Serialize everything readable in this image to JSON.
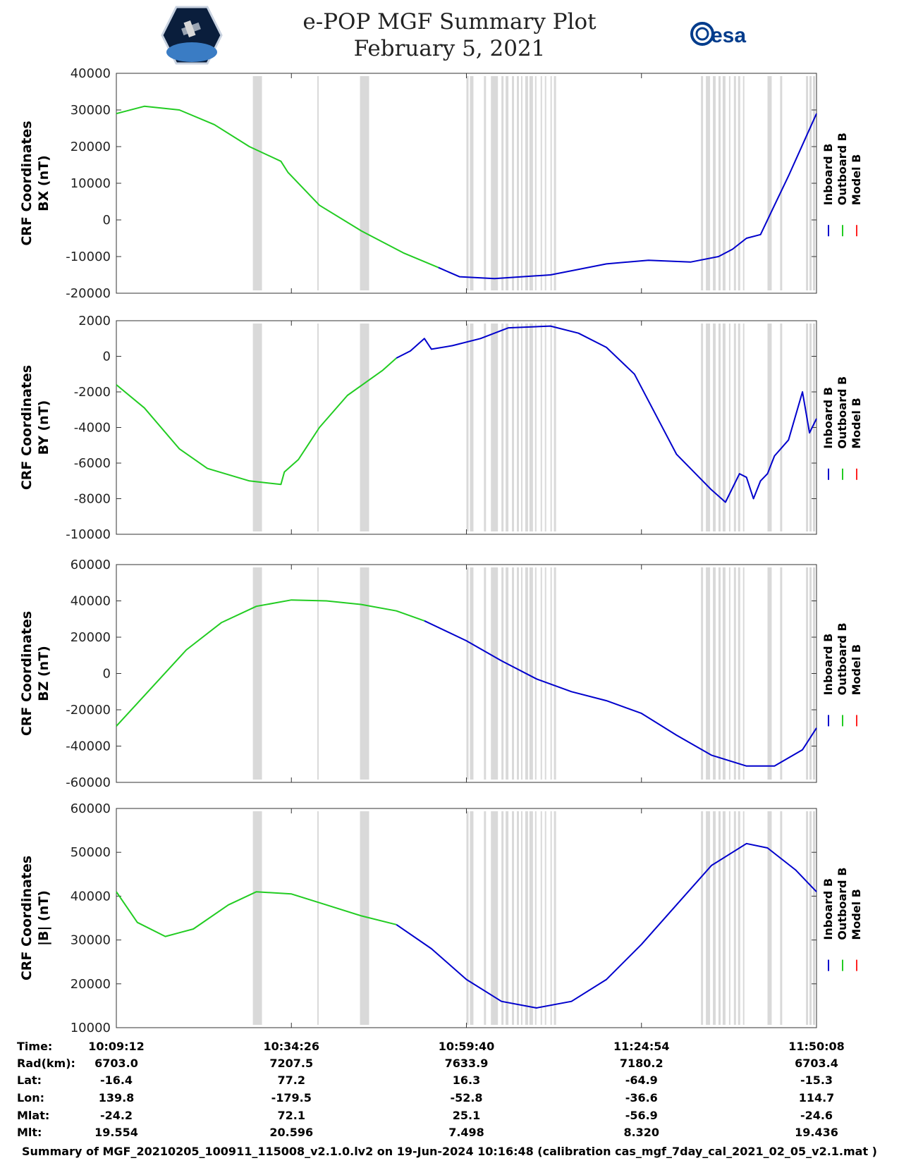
{
  "header": {
    "title_line1": "e-POP MGF Summary Plot",
    "title_line2": "February 5, 2021",
    "logo_left": "satellite-mission-logo",
    "logo_right_text": "esa"
  },
  "colors": {
    "inboard": "#0000cc",
    "outboard": "#22cc22",
    "model": "#ff2222",
    "gap": "#d9d9d9"
  },
  "chart_data": [
    {
      "type": "line",
      "id": "bx",
      "ylabel_line1": "CRF Coordinates",
      "ylabel_line2": "BX (nT)",
      "ylim": [
        -20000,
        40000
      ],
      "yticks": [
        "-20000",
        "-10000",
        "0",
        "10000",
        "20000",
        "30000",
        "40000"
      ],
      "legend": [
        "Inboard B",
        "Outboard B",
        "Model B"
      ],
      "series": [
        {
          "name": "Outboard B",
          "x": [
            0,
            0.04,
            0.09,
            0.14,
            0.19,
            0.235,
            0.245,
            0.29,
            0.35,
            0.41,
            0.46
          ],
          "y": [
            29000,
            31000,
            30000,
            26000,
            20000,
            16000,
            13000,
            4000,
            -3000,
            -9000,
            -13000
          ]
        },
        {
          "name": "Inboard B",
          "x": [
            0.46,
            0.49,
            0.54,
            0.62,
            0.7,
            0.76,
            0.82,
            0.86,
            0.88,
            0.9,
            0.92,
            0.94,
            0.96,
            1.0
          ],
          "y": [
            -13000,
            -15500,
            -16000,
            -15000,
            -12000,
            -11000,
            -11500,
            -10000,
            -8000,
            -5000,
            -4000,
            4000,
            12000,
            29000
          ]
        }
      ]
    },
    {
      "type": "line",
      "id": "by",
      "ylabel_line1": "CRF Coordinates",
      "ylabel_line2": "BY (nT)",
      "ylim": [
        -10000,
        2000
      ],
      "yticks": [
        "-10000",
        "-8000",
        "-6000",
        "-4000",
        "-2000",
        "0",
        "2000"
      ],
      "legend": [
        "Inboard B",
        "Outboard B",
        "Model B"
      ],
      "series": [
        {
          "name": "Outboard B",
          "x": [
            0,
            0.04,
            0.09,
            0.13,
            0.19,
            0.235,
            0.24,
            0.26,
            0.29,
            0.33,
            0.38,
            0.4
          ],
          "y": [
            -1600,
            -2900,
            -5200,
            -6300,
            -7000,
            -7200,
            -6500,
            -5800,
            -4000,
            -2200,
            -800,
            -100
          ]
        },
        {
          "name": "Inboard B",
          "x": [
            0.4,
            0.42,
            0.44,
            0.45,
            0.48,
            0.52,
            0.56,
            0.62,
            0.66,
            0.7,
            0.74,
            0.8,
            0.85,
            0.87,
            0.89,
            0.9,
            0.91,
            0.92,
            0.93,
            0.94,
            0.96,
            0.98,
            0.99,
            1.0
          ],
          "y": [
            -100,
            300,
            1000,
            400,
            600,
            1000,
            1600,
            1700,
            1300,
            500,
            -1000,
            -5500,
            -7500,
            -8200,
            -6600,
            -6800,
            -8000,
            -7000,
            -6600,
            -5600,
            -4700,
            -2000,
            -4300,
            -3500
          ]
        }
      ]
    },
    {
      "type": "line",
      "id": "bz",
      "ylabel_line1": "CRF Coordinates",
      "ylabel_line2": "BZ (nT)",
      "ylim": [
        -60000,
        60000
      ],
      "yticks": [
        "-60000",
        "-40000",
        "-20000",
        "0",
        "20000",
        "40000",
        "60000"
      ],
      "legend": [
        "Inboard B",
        "Outboard B",
        "Model B"
      ],
      "series": [
        {
          "name": "Outboard B",
          "x": [
            0,
            0.05,
            0.1,
            0.15,
            0.2,
            0.25,
            0.3,
            0.35,
            0.4,
            0.44
          ],
          "y": [
            -29000,
            -8000,
            13000,
            28000,
            37000,
            40500,
            40000,
            38000,
            34500,
            29000
          ]
        },
        {
          "name": "Inboard B",
          "x": [
            0.44,
            0.5,
            0.55,
            0.6,
            0.65,
            0.7,
            0.75,
            0.8,
            0.85,
            0.9,
            0.94,
            0.98,
            1.0
          ],
          "y": [
            29000,
            18000,
            7000,
            -3000,
            -10000,
            -15000,
            -22000,
            -34000,
            -45000,
            -51000,
            -51000,
            -42000,
            -30000
          ]
        }
      ]
    },
    {
      "type": "line",
      "id": "bmag",
      "ylabel_line1": "CRF Coordinates",
      "ylabel_line2": "|B| (nT)",
      "ylim": [
        10000,
        60000
      ],
      "yticks": [
        "10000",
        "20000",
        "30000",
        "40000",
        "50000",
        "60000"
      ],
      "legend": [
        "Inboard B",
        "Outboard B",
        "Model B"
      ],
      "series": [
        {
          "name": "Outboard B",
          "x": [
            0,
            0.03,
            0.07,
            0.11,
            0.16,
            0.2,
            0.25,
            0.3,
            0.35,
            0.4
          ],
          "y": [
            41000,
            34000,
            30800,
            32500,
            38000,
            41000,
            40500,
            38000,
            35500,
            33500
          ]
        },
        {
          "name": "Inboard B",
          "x": [
            0.4,
            0.45,
            0.5,
            0.55,
            0.6,
            0.65,
            0.7,
            0.75,
            0.8,
            0.85,
            0.9,
            0.93,
            0.97,
            1.0
          ],
          "y": [
            33500,
            28000,
            21000,
            16000,
            14500,
            16000,
            21000,
            29000,
            38000,
            47000,
            52000,
            51000,
            46000,
            41000
          ]
        }
      ]
    }
  ],
  "gap_bands": [
    [
      0.195,
      0.208
    ],
    [
      0.287,
      0.289
    ],
    [
      0.348,
      0.361
    ],
    [
      0.5,
      0.503
    ],
    [
      0.505,
      0.51
    ],
    [
      0.525,
      0.528
    ],
    [
      0.535,
      0.545
    ],
    [
      0.55,
      0.553
    ],
    [
      0.556,
      0.56
    ],
    [
      0.565,
      0.568
    ],
    [
      0.572,
      0.575
    ],
    [
      0.578,
      0.58
    ],
    [
      0.584,
      0.588
    ],
    [
      0.59,
      0.595
    ],
    [
      0.598,
      0.6
    ],
    [
      0.606,
      0.608
    ],
    [
      0.612,
      0.614
    ],
    [
      0.62,
      0.622
    ],
    [
      0.625,
      0.628
    ],
    [
      0.835,
      0.838
    ],
    [
      0.842,
      0.848
    ],
    [
      0.852,
      0.856
    ],
    [
      0.86,
      0.863
    ],
    [
      0.866,
      0.87
    ],
    [
      0.875,
      0.877
    ],
    [
      0.882,
      0.885
    ],
    [
      0.888,
      0.891
    ],
    [
      0.895,
      0.897
    ],
    [
      0.93,
      0.936
    ],
    [
      0.948,
      0.951
    ],
    [
      0.985,
      0.988
    ],
    [
      0.99,
      0.993
    ],
    [
      0.995,
      0.998
    ]
  ],
  "xticks": [
    0,
    0.25,
    0.5,
    0.75,
    1.0
  ],
  "ephemeris": {
    "labels": [
      "Time:",
      "Rad(km):",
      "Lat:",
      "Lon:",
      "Mlat:",
      "Mlt:"
    ],
    "columns": [
      [
        "10:09:12",
        "6703.0",
        "-16.4",
        "139.8",
        "-24.2",
        "19.554"
      ],
      [
        "10:34:26",
        "7207.5",
        "77.2",
        "-179.5",
        "72.1",
        "20.596"
      ],
      [
        "10:59:40",
        "7633.9",
        "16.3",
        "-52.8",
        "25.1",
        "7.498"
      ],
      [
        "11:24:54",
        "7180.2",
        "-64.9",
        "-36.6",
        "-56.9",
        "8.320"
      ],
      [
        "11:50:08",
        "6703.4",
        "-15.3",
        "114.7",
        "-24.6",
        "19.436"
      ]
    ]
  },
  "footer": "Summary of MGF_20210205_100911_115008_v2.1.0.lv2 on 19-Jun-2024 10:16:48 (calibration cas_mgf_7day_cal_2021_02_05_v2.1.mat )"
}
